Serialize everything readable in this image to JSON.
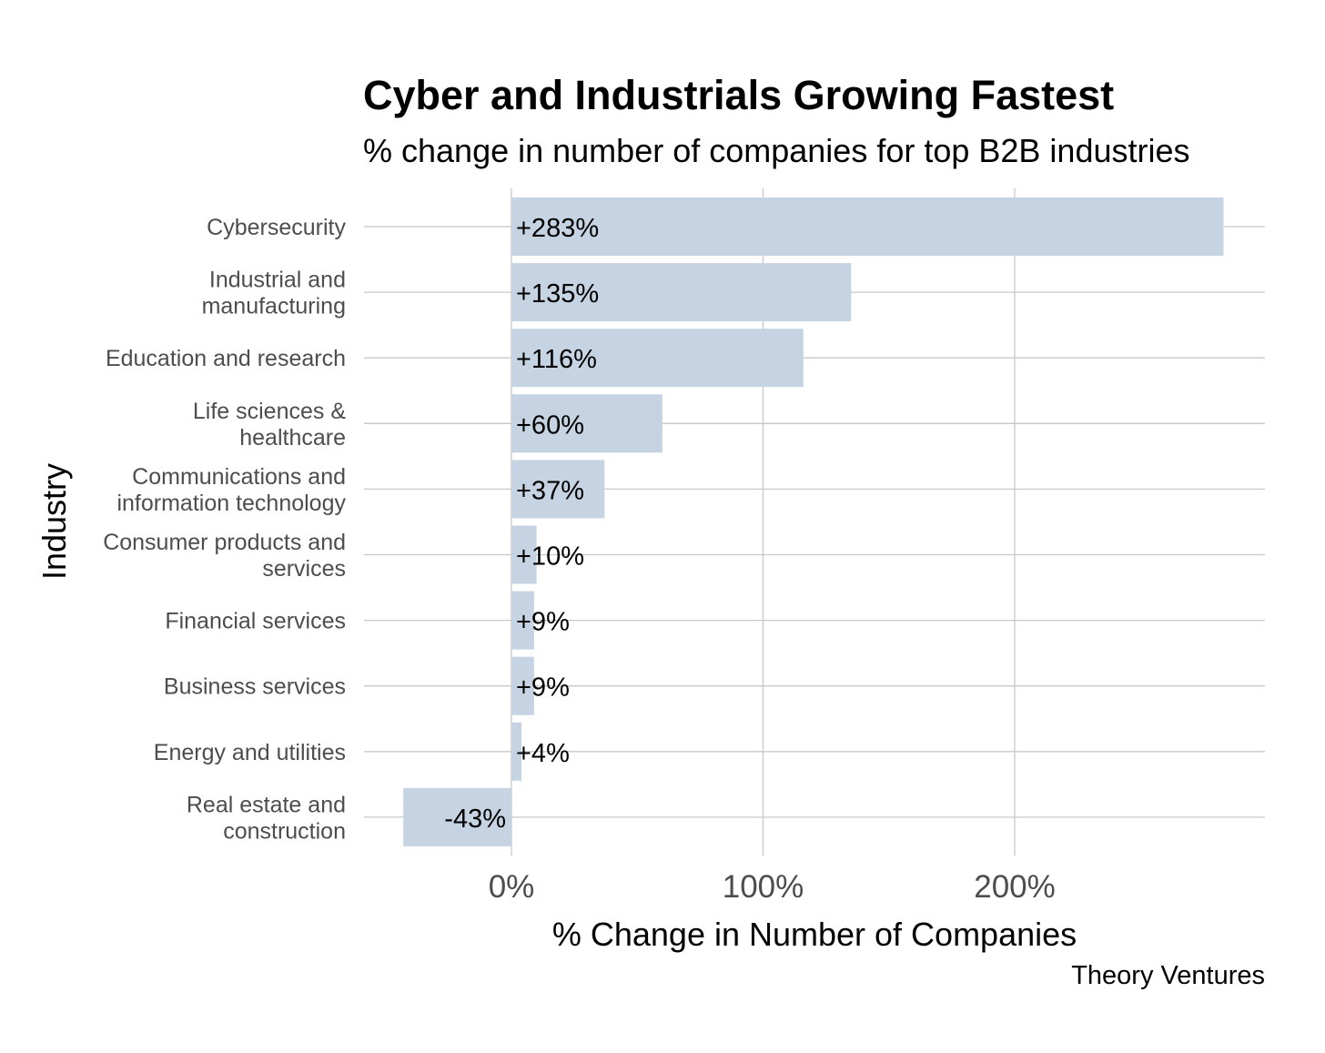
{
  "chart_data": {
    "type": "bar",
    "orientation": "horizontal",
    "title": "Cyber and Industrials Growing Fastest",
    "subtitle": "% change in number of companies for top B2B industries",
    "xlabel": "% Change in Number of Companies",
    "ylabel": "Industry",
    "caption": "Theory Ventures",
    "categories": [
      [
        "Cybersecurity"
      ],
      [
        "Industrial and",
        "manufacturing"
      ],
      [
        "Education and research"
      ],
      [
        "Life sciences &",
        "healthcare"
      ],
      [
        "Communications and",
        "information technology"
      ],
      [
        "Consumer products and",
        "services"
      ],
      [
        "Financial services"
      ],
      [
        "Business services"
      ],
      [
        "Energy and utilities"
      ],
      [
        "Real estate and",
        "construction"
      ]
    ],
    "values": [
      283,
      135,
      116,
      60,
      37,
      10,
      9,
      9,
      4,
      -43
    ],
    "data_labels": [
      "+283%",
      "+135%",
      "+116%",
      "+60%",
      "+37%",
      "+10%",
      "+9%",
      "+9%",
      "+4%",
      "-43%"
    ],
    "xlim": [
      -60,
      300
    ],
    "x_ticks": [
      0,
      100,
      200
    ],
    "x_tick_labels": [
      "0%",
      "100%",
      "200%"
    ],
    "bar_color": "#c5d3e2",
    "grid": true
  }
}
